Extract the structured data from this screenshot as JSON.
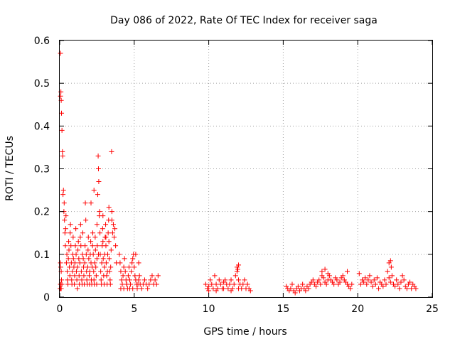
{
  "chart_data": {
    "type": "scatter",
    "title": "Day 086 of 2022, Rate Of TEC Index for receiver saga",
    "xlabel": "GPS time / hours",
    "ylabel": "ROTI / TECUs",
    "xlim": [
      0,
      25
    ],
    "ylim": [
      0,
      0.6
    ],
    "x_ticks": [
      0,
      5,
      10,
      15,
      20,
      25
    ],
    "x_tick_labels": [
      "0",
      "5",
      "10",
      "15",
      "20",
      "25"
    ],
    "y_ticks": [
      0,
      0.1,
      0.2,
      0.3,
      0.4,
      0.5,
      0.6
    ],
    "y_tick_labels": [
      "0",
      "0.1",
      "0.2",
      "0.3",
      "0.4",
      "0.5",
      "0.6"
    ],
    "grid": true,
    "legend": "none",
    "marker": "+",
    "color": "#ff0000",
    "series": [
      {
        "x": [
          0.05,
          0.05,
          0.08,
          0.1,
          0.12,
          0.15,
          0.18,
          0.2,
          0.22,
          0.25,
          0.28,
          0.3,
          0.32,
          0.35,
          0.38,
          0.4,
          0.42,
          0.45,
          0.48,
          0.5,
          0.52,
          0.55,
          0.58,
          0.6,
          0.62,
          0.65,
          0.68,
          0.7,
          0.72,
          0.75,
          0.78,
          0.8,
          0.82,
          0.85,
          0.88,
          0.9,
          0.92,
          0.95,
          0.98,
          1.0,
          1.02,
          1.05,
          1.08,
          1.1,
          1.12,
          1.15,
          1.18,
          1.2,
          1.22,
          1.25,
          1.28,
          1.3,
          1.32,
          1.35,
          1.38,
          1.4,
          1.42,
          1.45,
          1.48,
          1.5,
          1.52,
          1.55,
          1.58,
          1.6,
          1.62,
          1.65,
          1.68,
          1.7,
          1.72,
          1.75,
          1.78,
          1.8,
          1.82,
          1.85,
          1.88,
          1.9,
          1.92,
          1.95,
          1.98,
          2.0,
          2.02,
          2.05,
          2.08,
          2.1,
          2.12,
          2.15,
          2.18,
          2.2,
          2.22,
          2.25,
          2.28,
          2.3,
          2.32,
          2.35,
          2.38,
          2.4,
          2.42,
          2.45,
          2.48,
          2.5,
          2.52,
          2.55,
          2.58,
          2.6,
          2.62,
          2.65,
          2.68,
          2.7,
          2.72,
          2.75,
          2.78,
          2.8,
          2.82,
          2.85,
          2.88,
          2.9,
          2.92,
          2.95,
          2.98,
          3.0,
          3.02,
          3.05,
          3.08,
          3.1,
          3.12,
          3.15,
          3.18,
          3.2,
          3.22,
          3.25,
          3.28,
          3.3,
          3.32,
          3.35,
          3.38,
          3.4,
          3.42,
          3.45,
          3.48,
          3.5,
          3.55,
          3.6,
          3.65,
          3.7,
          3.75,
          3.8,
          0.06,
          0.08,
          0.1,
          0.12,
          0.15,
          0.05,
          0.07,
          0.1,
          0.03,
          0.05,
          2.1,
          2.3,
          2.5,
          2.6,
          2.9,
          3.1,
          3.3,
          3.5
        ],
        "y": [
          0.57,
          0.47,
          0.48,
          0.46,
          0.43,
          0.39,
          0.34,
          0.33,
          0.24,
          0.25,
          0.2,
          0.22,
          0.18,
          0.15,
          0.12,
          0.16,
          0.19,
          0.08,
          0.1,
          0.06,
          0.04,
          0.03,
          0.09,
          0.13,
          0.11,
          0.07,
          0.05,
          0.15,
          0.17,
          0.12,
          0.08,
          0.04,
          0.03,
          0.06,
          0.1,
          0.14,
          0.09,
          0.07,
          0.03,
          0.05,
          0.08,
          0.12,
          0.16,
          0.1,
          0.06,
          0.04,
          0.02,
          0.07,
          0.11,
          0.13,
          0.09,
          0.05,
          0.03,
          0.08,
          0.14,
          0.17,
          0.12,
          0.06,
          0.04,
          0.03,
          0.1,
          0.15,
          0.09,
          0.07,
          0.05,
          0.03,
          0.08,
          0.12,
          0.22,
          0.18,
          0.1,
          0.06,
          0.04,
          0.03,
          0.07,
          0.11,
          0.14,
          0.09,
          0.05,
          0.03,
          0.06,
          0.1,
          0.13,
          0.08,
          0.04,
          0.03,
          0.07,
          0.12,
          0.15,
          0.1,
          0.06,
          0.04,
          0.03,
          0.08,
          0.14,
          0.11,
          0.07,
          0.05,
          0.03,
          0.09,
          0.12,
          0.24,
          0.33,
          0.3,
          0.27,
          0.19,
          0.2,
          0.15,
          0.1,
          0.06,
          0.04,
          0.03,
          0.08,
          0.12,
          0.16,
          0.13,
          0.09,
          0.05,
          0.03,
          0.07,
          0.1,
          0.14,
          0.17,
          0.12,
          0.08,
          0.05,
          0.03,
          0.06,
          0.1,
          0.15,
          0.18,
          0.13,
          0.09,
          0.06,
          0.04,
          0.03,
          0.07,
          0.11,
          0.34,
          0.2,
          0.15,
          0.17,
          0.14,
          0.16,
          0.12,
          0.08,
          0.02,
          0.03,
          0.02,
          0.04,
          0.03,
          0.08,
          0.07,
          0.06,
          0.02,
          0.03,
          0.22,
          0.25,
          0.17,
          0.1,
          0.19,
          0.14,
          0.21,
          0.18
        ],
        "name": ""
      },
      {
        "x": [
          4.0,
          4.05,
          4.1,
          4.15,
          4.2,
          4.25,
          4.3,
          4.35,
          4.4,
          4.45,
          4.5,
          4.55,
          4.6,
          4.65,
          4.7,
          4.75,
          4.8,
          4.85,
          4.9,
          4.95,
          5.0,
          5.05,
          5.1,
          5.15,
          5.2,
          5.25,
          5.3,
          5.35,
          5.4,
          5.5,
          5.6,
          5.7,
          5.8,
          5.9,
          6.0,
          6.1,
          6.2,
          6.3,
          6.4,
          6.5,
          6.6,
          4.1,
          4.3,
          4.5,
          4.7,
          4.9,
          5.1,
          5.3
        ],
        "y": [
          0.1,
          0.08,
          0.06,
          0.04,
          0.03,
          0.05,
          0.07,
          0.09,
          0.06,
          0.04,
          0.03,
          0.02,
          0.05,
          0.07,
          0.04,
          0.03,
          0.06,
          0.08,
          0.09,
          0.1,
          0.07,
          0.05,
          0.04,
          0.03,
          0.02,
          0.03,
          0.04,
          0.05,
          0.03,
          0.02,
          0.03,
          0.04,
          0.03,
          0.02,
          0.03,
          0.04,
          0.05,
          0.03,
          0.04,
          0.03,
          0.05,
          0.02,
          0.02,
          0.03,
          0.02,
          0.02,
          0.1,
          0.08
        ],
        "name": ""
      },
      {
        "x": [
          9.8,
          9.9,
          10.0,
          10.1,
          10.2,
          10.3,
          10.4,
          10.5,
          10.6,
          10.7,
          10.8,
          10.9,
          11.0,
          11.1,
          11.2,
          11.3,
          11.4,
          11.5,
          11.6,
          11.7,
          11.8,
          11.9,
          12.0,
          12.1,
          12.2,
          12.3,
          12.4,
          12.5,
          12.6,
          12.7,
          12.8,
          10.0,
          10.5,
          11.0,
          11.5,
          12.0,
          12.5,
          11.9,
          12.0,
          11.95
        ],
        "y": [
          0.03,
          0.02,
          0.025,
          0.04,
          0.03,
          0.02,
          0.05,
          0.03,
          0.02,
          0.04,
          0.03,
          0.02,
          0.035,
          0.04,
          0.03,
          0.02,
          0.03,
          0.04,
          0.02,
          0.03,
          0.05,
          0.06,
          0.04,
          0.03,
          0.02,
          0.03,
          0.04,
          0.02,
          0.03,
          0.02,
          0.015,
          0.015,
          0.015,
          0.02,
          0.015,
          0.02,
          0.02,
          0.07,
          0.075,
          0.065
        ],
        "name": ""
      },
      {
        "x": [
          15.2,
          15.3,
          15.4,
          15.5,
          15.6,
          15.7,
          15.8,
          15.9,
          16.0,
          16.1,
          16.2,
          16.3,
          16.4,
          16.5,
          16.6,
          16.7,
          16.8,
          16.9,
          17.0,
          17.1,
          17.2,
          17.3,
          17.4,
          17.5,
          17.6,
          17.7,
          17.8,
          17.9,
          18.0,
          18.1,
          18.2,
          18.3,
          18.4,
          18.5,
          18.6,
          18.7,
          18.8,
          18.9,
          19.0,
          19.1,
          19.2,
          19.3,
          19.4,
          19.5,
          19.6,
          17.6,
          17.8,
          18.0,
          19.3
        ],
        "y": [
          0.025,
          0.02,
          0.015,
          0.02,
          0.03,
          0.015,
          0.01,
          0.02,
          0.025,
          0.015,
          0.02,
          0.03,
          0.02,
          0.015,
          0.025,
          0.02,
          0.03,
          0.035,
          0.04,
          0.03,
          0.025,
          0.035,
          0.04,
          0.03,
          0.05,
          0.045,
          0.035,
          0.03,
          0.04,
          0.05,
          0.04,
          0.035,
          0.03,
          0.045,
          0.04,
          0.03,
          0.035,
          0.045,
          0.05,
          0.04,
          0.035,
          0.03,
          0.025,
          0.02,
          0.03,
          0.06,
          0.065,
          0.055,
          0.06
        ],
        "name": ""
      },
      {
        "x": [
          20.2,
          20.3,
          20.4,
          20.5,
          20.6,
          20.7,
          20.8,
          20.9,
          21.0,
          21.1,
          21.2,
          21.3,
          21.4,
          21.5,
          21.6,
          21.7,
          21.8,
          21.9,
          22.0,
          22.1,
          22.2,
          22.3,
          22.4,
          22.5,
          22.6,
          22.7,
          22.8,
          22.9,
          23.0,
          23.1,
          23.2,
          23.3,
          23.4,
          23.5,
          23.6,
          23.7,
          23.8,
          23.9,
          22.1,
          22.2,
          22.25,
          20.1
        ],
        "y": [
          0.03,
          0.04,
          0.035,
          0.045,
          0.03,
          0.04,
          0.05,
          0.035,
          0.025,
          0.04,
          0.03,
          0.045,
          0.02,
          0.035,
          0.03,
          0.025,
          0.04,
          0.03,
          0.06,
          0.045,
          0.035,
          0.05,
          0.03,
          0.025,
          0.04,
          0.03,
          0.02,
          0.035,
          0.05,
          0.04,
          0.025,
          0.02,
          0.03,
          0.035,
          0.02,
          0.03,
          0.025,
          0.02,
          0.08,
          0.085,
          0.07,
          0.055
        ],
        "name": ""
      }
    ]
  }
}
